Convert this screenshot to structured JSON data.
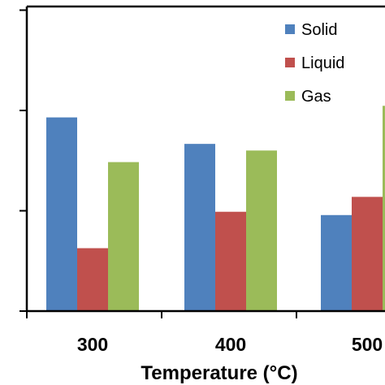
{
  "chart_data": {
    "type": "bar",
    "categories": [
      "300",
      "400",
      "500"
    ],
    "series": [
      {
        "name": "Solid",
        "color": "#4f81bd",
        "values": [
          58.5,
          50.5,
          29
        ]
      },
      {
        "name": "Liquid",
        "color": "#c0504d",
        "values": [
          19,
          30,
          34.5
        ]
      },
      {
        "name": "Gas",
        "color": "#9bbb59",
        "values": [
          45,
          48.5,
          62
        ]
      }
    ],
    "xlabel": "Temperature (°C)",
    "ylabel": "",
    "ylim": [
      0,
      92
    ],
    "grid": false,
    "legend_position": "top-right"
  }
}
